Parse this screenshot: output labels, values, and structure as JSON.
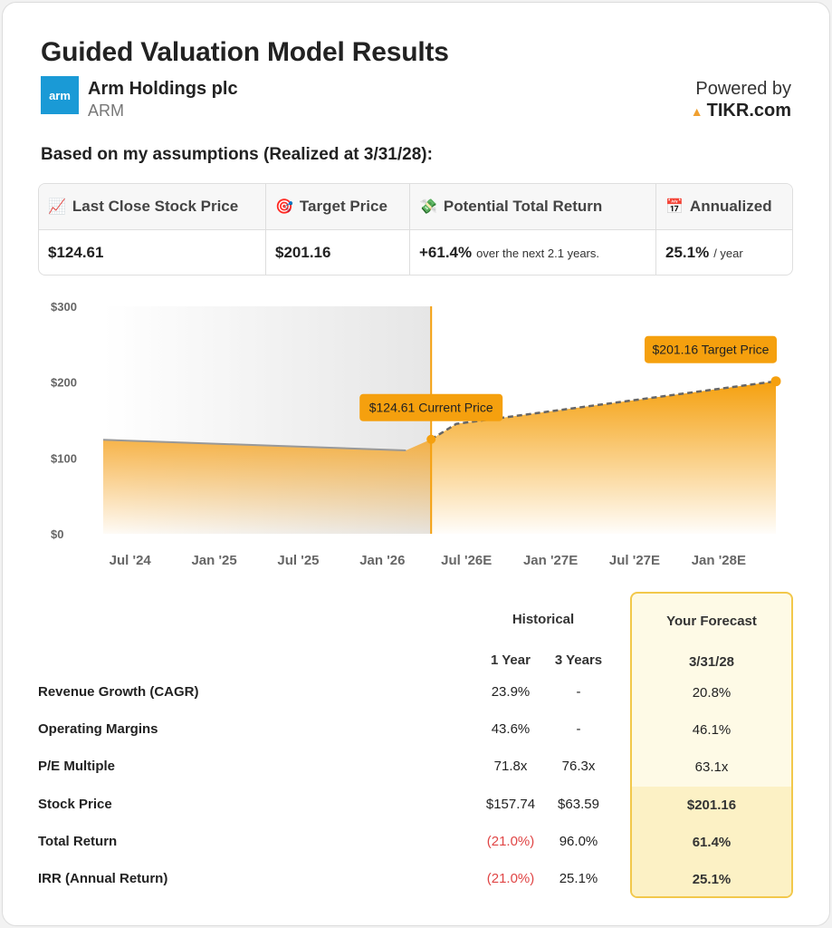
{
  "header": {
    "title": "Guided Valuation Model Results",
    "logo_text": "arm",
    "company": "Arm Holdings plc",
    "ticker": "ARM",
    "powered_by": "Powered by",
    "brand": "TIKR.com",
    "assumptions": "Based on my assumptions (Realized at 3/31/28):"
  },
  "summary": [
    {
      "label": "Last Close Stock Price",
      "icon": "chart-up-icon",
      "emoji": "📈",
      "value": "$124.61",
      "sub": ""
    },
    {
      "label": "Target Price",
      "icon": "target-icon",
      "emoji": "🎯",
      "value": "$201.16",
      "sub": ""
    },
    {
      "label": "Potential Total Return",
      "icon": "money-icon",
      "emoji": "💸",
      "value": "+61.4%",
      "sub": "over the next 2.1 years."
    },
    {
      "label": "Annualized",
      "icon": "calendar-icon",
      "emoji": "📅",
      "value": "25.1%",
      "sub": "/ year"
    }
  ],
  "chart_data": {
    "type": "area",
    "y_ticks": [
      "$300",
      "$200",
      "$100",
      "$0"
    ],
    "ylim": [
      0,
      300
    ],
    "x_ticks": [
      "Jul '24",
      "Jan '25",
      "Jul '25",
      "Jan '26",
      "Jul '26E",
      "Jan '27E",
      "Jul '27E",
      "Jan '28E"
    ],
    "historical": [
      [
        0,
        124
      ],
      [
        3.6,
        110
      ],
      [
        3.9,
        124.61
      ]
    ],
    "forecast": [
      [
        3.9,
        124.61
      ],
      [
        4.2,
        145
      ],
      [
        8.0,
        201.16
      ]
    ],
    "current_label": "$124.61 Current Price",
    "target_label": "$201.16 Target Price",
    "colors": {
      "accent": "#f5a00e",
      "forecast_line": "#666666",
      "hist_line": "#999999"
    }
  },
  "metrics": {
    "historical_header": "Historical",
    "forecast_header": "Your Forecast",
    "col_1y": "1 Year",
    "col_3y": "3 Years",
    "col_fc": "3/31/28",
    "rows": [
      {
        "label": "Revenue Growth (CAGR)",
        "y1": "23.9%",
        "y3": "-",
        "fc": "20.8%"
      },
      {
        "label": "Operating Margins",
        "y1": "43.6%",
        "y3": "-",
        "fc": "46.1%"
      },
      {
        "label": "P/E Multiple",
        "y1": "71.8x",
        "y3": "76.3x",
        "fc": "63.1x"
      },
      {
        "label": "Stock Price",
        "y1": "$157.74",
        "y3": "$63.59",
        "fc": "$201.16"
      },
      {
        "label": "Total Return",
        "y1": "(21.0%)",
        "y3": "96.0%",
        "fc": "61.4%"
      },
      {
        "label": "IRR (Annual Return)",
        "y1": "(21.0%)",
        "y3": "25.1%",
        "fc": "25.1%"
      }
    ]
  }
}
